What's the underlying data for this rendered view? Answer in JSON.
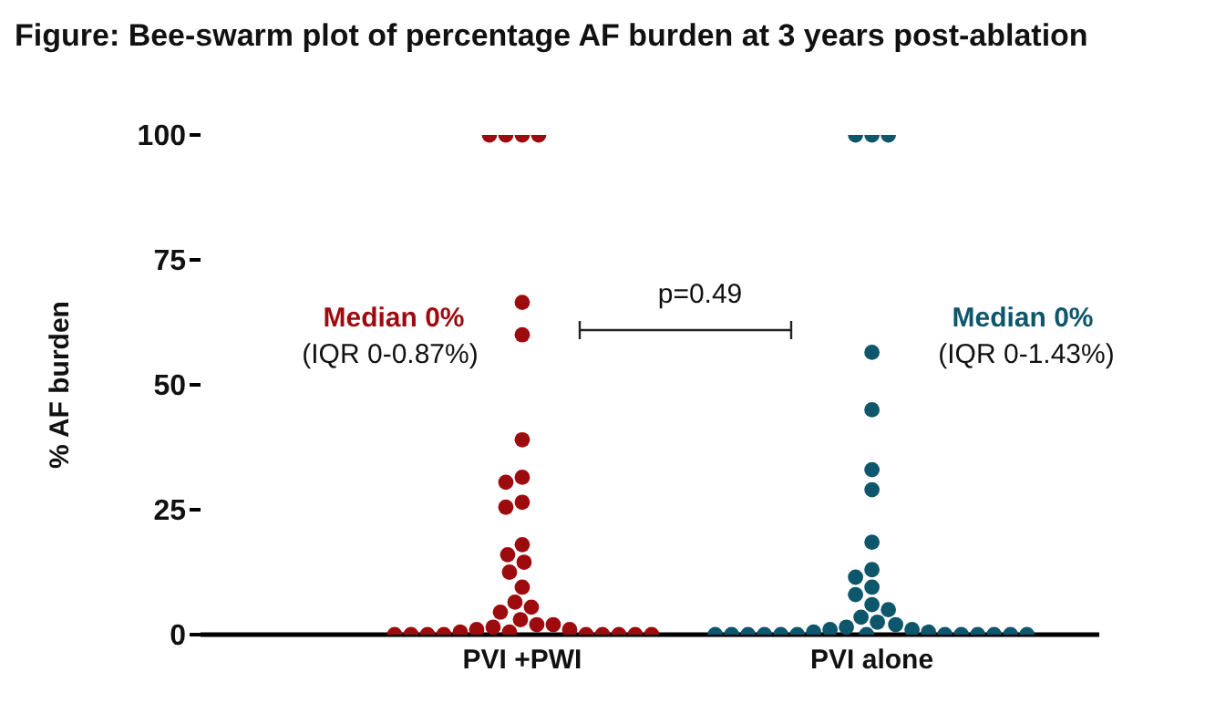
{
  "chart_data": {
    "type": "scatter",
    "title": "Figure: Bee-swarm plot of percentage AF burden at 3 years post-ablation",
    "ylabel": "% AF burden",
    "categories": [
      "PVI +PWI",
      "PVI alone"
    ],
    "series": [
      {
        "color": "#9e0b0f",
        "x": [
          "PVI +PWI",
          "PVI +PWI",
          "PVI +PWI",
          "PVI +PWI",
          "PVI +PWI",
          "PVI +PWI",
          "PVI +PWI",
          "PVI +PWI",
          "PVI +PWI",
          "PVI +PWI",
          "PVI +PWI",
          "PVI +PWI",
          "PVI +PWI",
          "PVI +PWI",
          "PVI +PWI",
          "PVI +PWI",
          "PVI +PWI",
          "PVI +PWI",
          "PVI +PWI",
          "PVI +PWI",
          "PVI +PWI",
          "PVI +PWI",
          "PVI +PWI",
          "PVI +PWI",
          "PVI +PWI",
          "PVI +PWI",
          "PVI +PWI",
          "PVI +PWI",
          "PVI +PWI",
          "PVI +PWI",
          "PVI +PWI",
          "PVI +PWI",
          "PVI +PWI",
          "PVI +PWI",
          "PVI +PWI",
          "PVI +PWI"
        ],
        "values": [
          100,
          100,
          100,
          100,
          66.5,
          60,
          39,
          31.5,
          30.5,
          26.5,
          25.5,
          18,
          16,
          14.5,
          12.5,
          9.5,
          6.5,
          5.5,
          4.5,
          3,
          2,
          2,
          1.5,
          1,
          1,
          0.5,
          0.5,
          0,
          0,
          0,
          0,
          0,
          0,
          0,
          0,
          0
        ]
      },
      {
        "color": "#0e566b",
        "x": [
          "PVI alone",
          "PVI alone",
          "PVI alone",
          "PVI alone",
          "PVI alone",
          "PVI alone",
          "PVI alone",
          "PVI alone",
          "PVI alone",
          "PVI alone",
          "PVI alone",
          "PVI alone",
          "PVI alone",
          "PVI alone",
          "PVI alone",
          "PVI alone",
          "PVI alone",
          "PVI alone",
          "PVI alone",
          "PVI alone",
          "PVI alone",
          "PVI alone",
          "PVI alone",
          "PVI alone",
          "PVI alone",
          "PVI alone",
          "PVI alone",
          "PVI alone",
          "PVI alone",
          "PVI alone",
          "PVI alone",
          "PVI alone",
          "PVI alone",
          "PVI alone",
          "PVI alone"
        ],
        "values": [
          100,
          100,
          100,
          56.5,
          45,
          33,
          29,
          18.5,
          13,
          11.5,
          9.5,
          8,
          6,
          5,
          3.5,
          2.5,
          2,
          1.5,
          1,
          1,
          0.5,
          0.5,
          0,
          0,
          0,
          0,
          0,
          0,
          0,
          0,
          0,
          0,
          0,
          0,
          0
        ]
      }
    ],
    "ylim": [
      0,
      100
    ],
    "yticks": [
      0,
      25,
      50,
      75,
      100
    ],
    "grid": false,
    "marker": "circle",
    "annotations": [
      "Median 0%",
      "(IQR 0-0.87%)",
      "p=0.49",
      "Median 0%",
      "(IQR 0-1.43%)"
    ]
  }
}
